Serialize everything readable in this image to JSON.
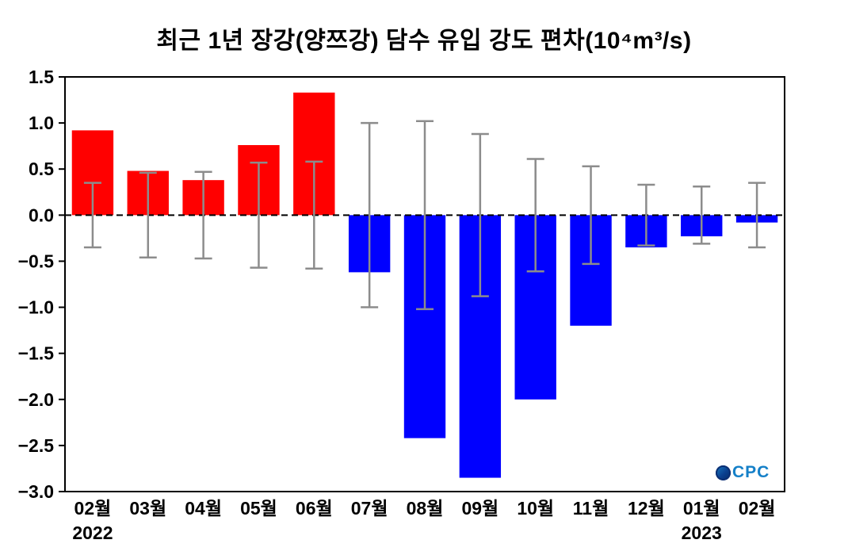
{
  "title": "최근 1년 장강(양쯔강) 담수 유입 강도 편차(10⁴m³/s)",
  "logo": {
    "text": "CPC",
    "icon": "globe-icon"
  },
  "chart_data": {
    "type": "bar",
    "title": "최근 1년 장강(양쯔강) 담수 유입 강도 편차(10⁴m³/s)",
    "categories": [
      "02월",
      "03월",
      "04월",
      "05월",
      "06월",
      "07월",
      "08월",
      "09월",
      "10월",
      "11월",
      "12월",
      "01월",
      "02월"
    ],
    "values": [
      0.92,
      0.48,
      0.38,
      0.76,
      1.33,
      -0.62,
      -2.42,
      -2.85,
      -2.0,
      -1.2,
      -0.35,
      -0.23,
      -0.08
    ],
    "error_bars": [
      0.35,
      0.46,
      0.47,
      0.57,
      0.58,
      1.0,
      1.02,
      0.88,
      0.61,
      0.53,
      0.33,
      0.31,
      0.35
    ],
    "year_labels": [
      {
        "index": 0,
        "label": "2022"
      },
      {
        "index": 11,
        "label": "2023"
      }
    ],
    "xlabel": "",
    "ylabel": "",
    "ylim": [
      -3.0,
      1.5
    ],
    "ytick_step": 0.5,
    "grid": false,
    "legend": "none",
    "zero_line": "dashed",
    "colors": {
      "positive": "#ff0000",
      "negative": "#0000ff",
      "error": "#8c8c8c",
      "axis": "#000000",
      "zero_line": "#000000"
    }
  }
}
